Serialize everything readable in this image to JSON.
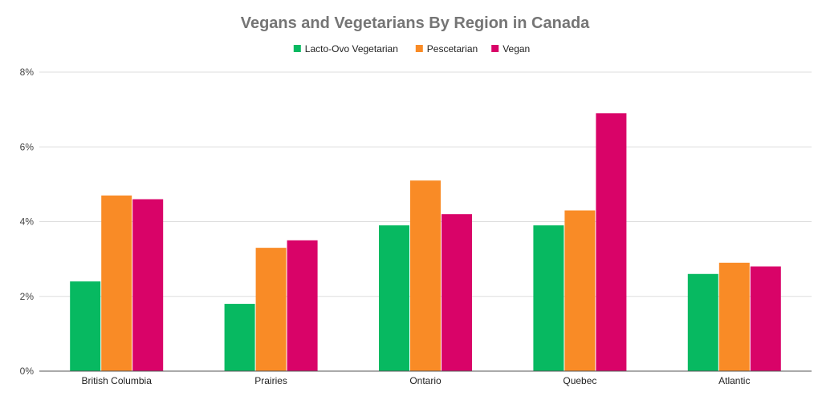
{
  "chart_data": {
    "type": "bar",
    "title": "Vegans and Vegetarians By Region in Canada",
    "xlabel": "",
    "ylabel": "",
    "categories": [
      "British Columbia",
      "Prairies",
      "Ontario",
      "Quebec",
      "Atlantic"
    ],
    "series": [
      {
        "name": "Lacto-Ovo Vegetarian",
        "color": "#07b961",
        "values": [
          2.4,
          1.8,
          3.9,
          3.9,
          2.6
        ]
      },
      {
        "name": "Pescetarian",
        "color": "#f98b26",
        "values": [
          4.7,
          3.3,
          5.1,
          4.3,
          2.9
        ]
      },
      {
        "name": "Vegan",
        "color": "#d90368",
        "values": [
          4.6,
          3.5,
          4.2,
          6.9,
          2.8
        ]
      }
    ],
    "ylim": [
      0,
      8
    ],
    "yticks": [
      0,
      2,
      4,
      6,
      8
    ],
    "ytick_labels": [
      "0%",
      "2%",
      "4%",
      "6%",
      "8%"
    ],
    "grid": true,
    "legend_position": "top-center",
    "gridline_color": "#dddddd",
    "axis_color": "#555555"
  }
}
